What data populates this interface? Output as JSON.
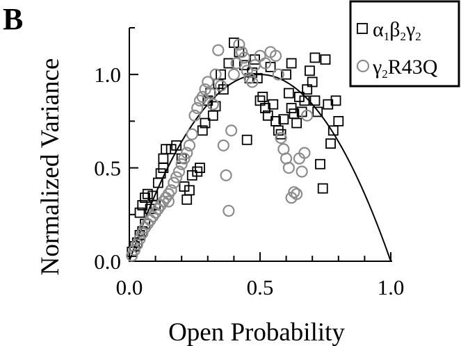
{
  "panel_label": "B",
  "colors": {
    "series1": "#000000",
    "series2": "#8c8c8c",
    "fit": "#000000"
  },
  "chart_data": {
    "type": "scatter",
    "title": "",
    "xlabel": "Open Probability",
    "ylabel": "Normalized Variance",
    "xlim": [
      0,
      1
    ],
    "ylim": [
      0,
      1.25
    ],
    "xticks": [
      0.0,
      0.5,
      1.0
    ],
    "xtick_labels": [
      "0.0",
      "0.5",
      "1.0"
    ],
    "yticks": [
      0.0,
      0.5,
      1.0
    ],
    "ytick_labels": [
      "0.0",
      "0.5",
      "1.0"
    ],
    "minor_x_step": 0.1,
    "minor_y_step": 0.25,
    "grid": false,
    "legend_position": "top-right",
    "fit": {
      "type": "line",
      "equation": "y = 4x(1-x)"
    },
    "series": [
      {
        "marker": "square",
        "legend": {
          "main": "α",
          "parts": [
            [
              "1",
              "β"
            ],
            [
              "2",
              "γ"
            ],
            [
              "2",
              ""
            ]
          ]
        },
        "points": [
          [
            0.01,
            0.05
          ],
          [
            0.02,
            0.08
          ],
          [
            0.03,
            0.1
          ],
          [
            0.04,
            0.14
          ],
          [
            0.05,
            0.16
          ],
          [
            0.06,
            0.2
          ],
          [
            0.04,
            0.26
          ],
          [
            0.05,
            0.3
          ],
          [
            0.06,
            0.34
          ],
          [
            0.07,
            0.36
          ],
          [
            0.08,
            0.28
          ],
          [
            0.09,
            0.35
          ],
          [
            0.1,
            0.3
          ],
          [
            0.11,
            0.42
          ],
          [
            0.12,
            0.47
          ],
          [
            0.13,
            0.5
          ],
          [
            0.13,
            0.55
          ],
          [
            0.14,
            0.6
          ],
          [
            0.16,
            0.6
          ],
          [
            0.18,
            0.62
          ],
          [
            0.2,
            0.55
          ],
          [
            0.21,
            0.4
          ],
          [
            0.22,
            0.33
          ],
          [
            0.23,
            0.38
          ],
          [
            0.24,
            0.46
          ],
          [
            0.26,
            0.48
          ],
          [
            0.27,
            0.5
          ],
          [
            0.28,
            0.7
          ],
          [
            0.29,
            0.74
          ],
          [
            0.3,
            0.86
          ],
          [
            0.31,
            0.9
          ],
          [
            0.32,
            0.78
          ],
          [
            0.33,
            0.83
          ],
          [
            0.34,
            0.95
          ],
          [
            0.35,
            1.0
          ],
          [
            0.36,
            0.92
          ],
          [
            0.38,
            1.06
          ],
          [
            0.4,
            1.17
          ],
          [
            0.42,
            1.12
          ],
          [
            0.44,
            1.05
          ],
          [
            0.45,
            0.65
          ],
          [
            0.46,
            0.98
          ],
          [
            0.48,
            1.08
          ],
          [
            0.5,
            0.86
          ],
          [
            0.51,
            0.88
          ],
          [
            0.52,
            0.82
          ],
          [
            0.53,
            0.78
          ],
          [
            0.55,
            0.84
          ],
          [
            0.56,
            0.75
          ],
          [
            0.57,
            0.7
          ],
          [
            0.58,
            0.68
          ],
          [
            0.59,
            0.76
          ],
          [
            0.6,
            1.0
          ],
          [
            0.61,
            0.9
          ],
          [
            0.62,
            0.82
          ],
          [
            0.63,
            0.79
          ],
          [
            0.64,
            0.74
          ],
          [
            0.65,
            0.88
          ],
          [
            0.66,
            0.8
          ],
          [
            0.67,
            0.86
          ],
          [
            0.68,
            0.92
          ],
          [
            0.69,
            1.02
          ],
          [
            0.7,
            0.96
          ],
          [
            0.71,
            0.86
          ],
          [
            0.72,
            0.8
          ],
          [
            0.73,
            0.52
          ],
          [
            0.74,
            0.39
          ],
          [
            0.75,
            1.08
          ],
          [
            0.76,
            0.84
          ],
          [
            0.77,
            0.63
          ],
          [
            0.78,
            0.7
          ],
          [
            0.79,
            0.86
          ],
          [
            0.8,
            0.75
          ],
          [
            0.49,
            0.98
          ],
          [
            0.47,
            1.01
          ],
          [
            0.54,
            1.04
          ],
          [
            0.62,
            1.06
          ],
          [
            0.71,
            1.09
          ]
        ]
      },
      {
        "marker": "circle",
        "legend": {
          "main": "γ",
          "parts": [
            [
              "2",
              "R43Q"
            ]
          ]
        },
        "points": [
          [
            0.01,
            0.03
          ],
          [
            0.02,
            0.06
          ],
          [
            0.03,
            0.09
          ],
          [
            0.04,
            0.12
          ],
          [
            0.05,
            0.15
          ],
          [
            0.06,
            0.18
          ],
          [
            0.07,
            0.2
          ],
          [
            0.08,
            0.22
          ],
          [
            0.09,
            0.24
          ],
          [
            0.1,
            0.26
          ],
          [
            0.11,
            0.28
          ],
          [
            0.12,
            0.3
          ],
          [
            0.13,
            0.32
          ],
          [
            0.14,
            0.34
          ],
          [
            0.15,
            0.36
          ],
          [
            0.16,
            0.38
          ],
          [
            0.17,
            0.42
          ],
          [
            0.18,
            0.45
          ],
          [
            0.19,
            0.48
          ],
          [
            0.2,
            0.52
          ],
          [
            0.22,
            0.58
          ],
          [
            0.23,
            0.62
          ],
          [
            0.24,
            0.68
          ],
          [
            0.25,
            0.78
          ],
          [
            0.26,
            0.82
          ],
          [
            0.27,
            0.86
          ],
          [
            0.28,
            0.88
          ],
          [
            0.29,
            0.92
          ],
          [
            0.3,
            0.96
          ],
          [
            0.31,
            0.9
          ],
          [
            0.32,
            0.84
          ],
          [
            0.33,
            1.0
          ],
          [
            0.34,
            1.13
          ],
          [
            0.35,
            0.94
          ],
          [
            0.37,
            0.46
          ],
          [
            0.38,
            0.27
          ],
          [
            0.39,
            0.7
          ],
          [
            0.4,
            1.0
          ],
          [
            0.41,
            1.06
          ],
          [
            0.42,
            1.16
          ],
          [
            0.43,
            1.12
          ],
          [
            0.44,
            1.09
          ],
          [
            0.45,
            1.02
          ],
          [
            0.46,
            0.98
          ],
          [
            0.47,
            0.96
          ],
          [
            0.48,
            1.05
          ],
          [
            0.5,
            1.1
          ],
          [
            0.52,
            1.06
          ],
          [
            0.54,
            1.12
          ],
          [
            0.56,
            1.1
          ],
          [
            0.57,
            1.0
          ],
          [
            0.58,
            0.66
          ],
          [
            0.59,
            0.6
          ],
          [
            0.6,
            0.55
          ],
          [
            0.61,
            0.5
          ],
          [
            0.62,
            0.34
          ],
          [
            0.63,
            0.37
          ],
          [
            0.64,
            0.36
          ],
          [
            0.65,
            0.55
          ],
          [
            0.66,
            0.48
          ],
          [
            0.67,
            0.58
          ],
          [
            0.68,
            0.78
          ],
          [
            0.36,
            0.62
          ],
          [
            0.21,
            0.55
          ],
          [
            0.15,
            0.32
          ]
        ]
      }
    ]
  }
}
